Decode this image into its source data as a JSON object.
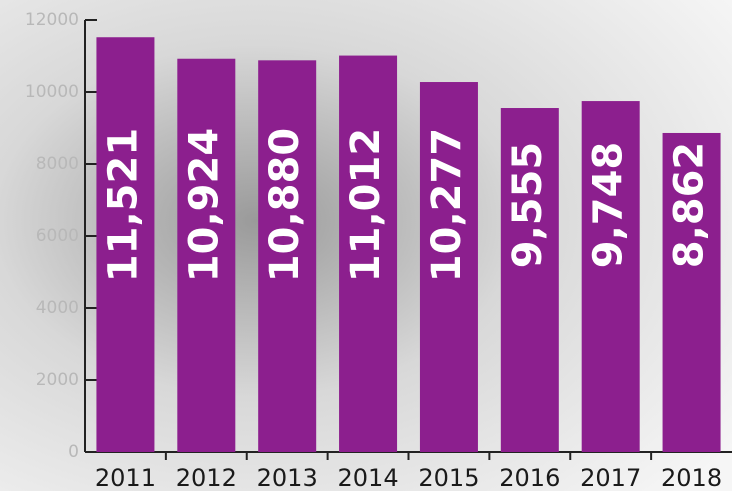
{
  "chart_data": {
    "type": "bar",
    "categories": [
      "2011",
      "2012",
      "2013",
      "2014",
      "2015",
      "2016",
      "2017",
      "2018"
    ],
    "values": [
      11521,
      10924,
      10880,
      11012,
      10277,
      9555,
      9748,
      8862
    ],
    "value_labels": [
      "11,521",
      "10,924",
      "10,880",
      "11,012",
      "10,277",
      "9,555",
      "9,748",
      "8,862"
    ],
    "color": "#8c1f8e",
    "ylim": [
      0,
      12000
    ],
    "yticks": [
      0,
      2000,
      4000,
      6000,
      8000,
      10000,
      12000
    ]
  }
}
